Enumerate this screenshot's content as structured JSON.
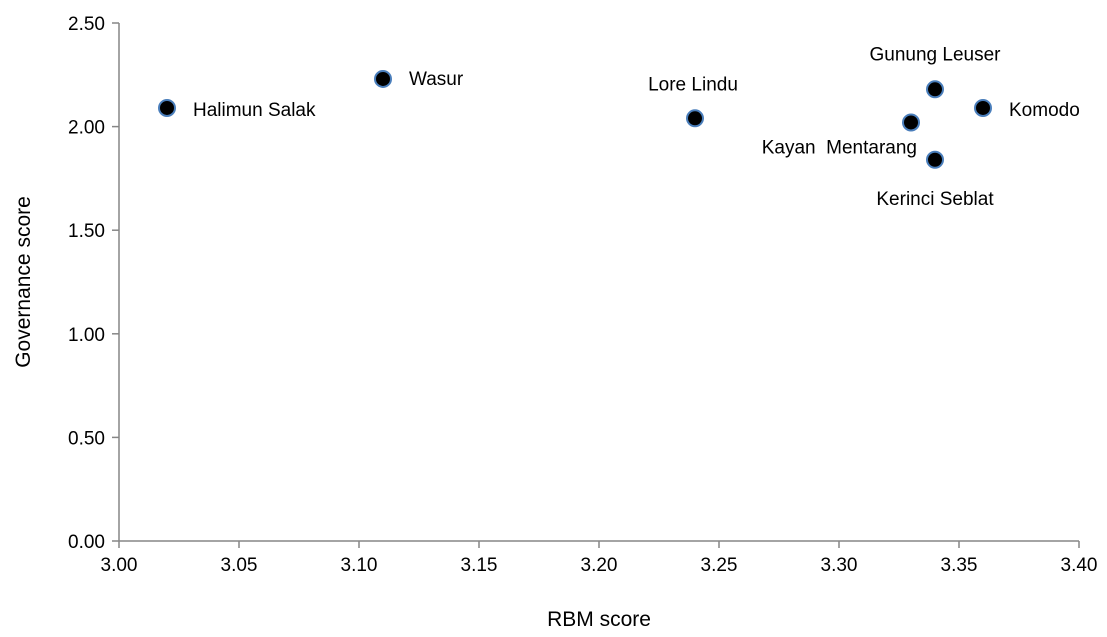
{
  "chart_data": {
    "type": "scatter",
    "title": "",
    "xlabel": "RBM score",
    "ylabel": "Governance score",
    "xlim": [
      3.0,
      3.4
    ],
    "ylim": [
      0.0,
      2.5
    ],
    "x_ticks": [
      "3.00",
      "3.05",
      "3.10",
      "3.15",
      "3.20",
      "3.25",
      "3.30",
      "3.35",
      "3.40"
    ],
    "y_ticks": [
      "0.00",
      "0.50",
      "1.00",
      "1.50",
      "2.00",
      "2.50"
    ],
    "grid": false,
    "legend": "none",
    "marker_fill": "#000000",
    "marker_stroke": "#4a7ebb",
    "points": [
      {
        "label": "Halimun Salak",
        "x": 3.02,
        "y": 2.09
      },
      {
        "label": "Wasur",
        "x": 3.11,
        "y": 2.23
      },
      {
        "label": "Lore Lindu",
        "x": 3.24,
        "y": 2.04
      },
      {
        "label": "Kayan  Mentarang",
        "x": 3.33,
        "y": 2.02
      },
      {
        "label": "Gunung Leuser",
        "x": 3.34,
        "y": 2.18
      },
      {
        "label": "Kerinci Seblat",
        "x": 3.34,
        "y": 1.84
      },
      {
        "label": "Komodo",
        "x": 3.36,
        "y": 2.09
      }
    ]
  }
}
